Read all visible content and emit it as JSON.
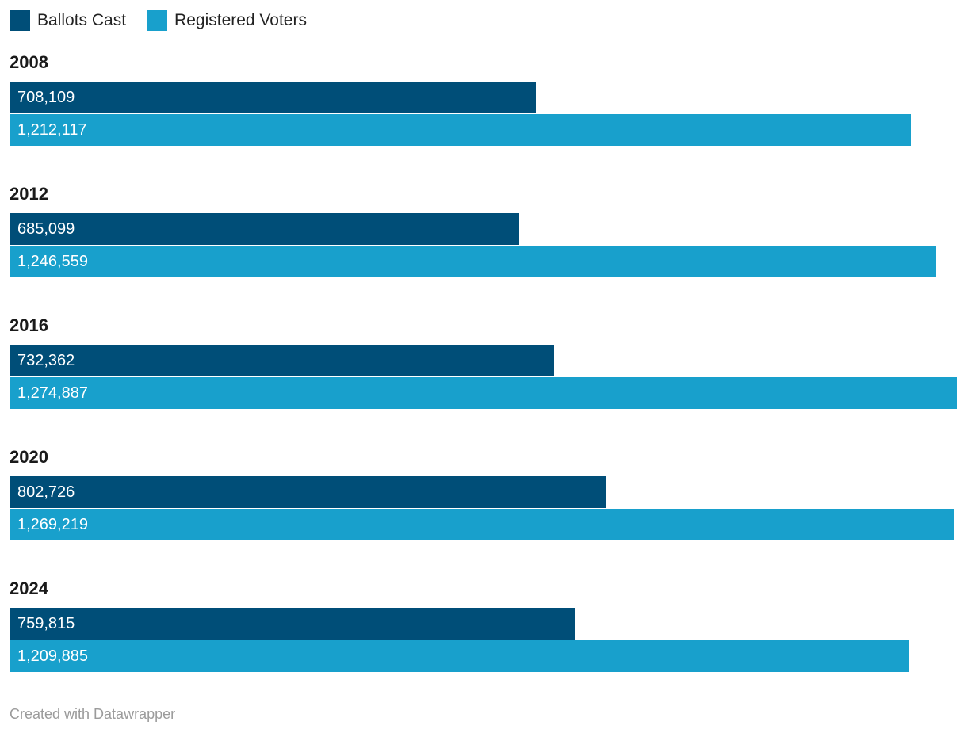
{
  "legend": {
    "items": [
      {
        "label": "Ballots Cast",
        "color": "#004e78"
      },
      {
        "label": "Registered Voters",
        "color": "#18a0cc"
      }
    ]
  },
  "chart_data": {
    "type": "bar",
    "orientation": "horizontal",
    "title": "",
    "categories": [
      "2008",
      "2012",
      "2016",
      "2020",
      "2024"
    ],
    "series": [
      {
        "name": "Ballots Cast",
        "color": "#004e78",
        "values": [
          708109,
          685099,
          732362,
          802726,
          759815
        ],
        "labels": [
          "708,109",
          "685,099",
          "732,362",
          "802,726",
          "759,815"
        ]
      },
      {
        "name": "Registered Voters",
        "color": "#18a0cc",
        "values": [
          1212117,
          1246559,
          1274887,
          1269219,
          1209885
        ],
        "labels": [
          "1,212,117",
          "1,246,559",
          "1,274,887",
          "1,269,219",
          "1,209,885"
        ]
      }
    ],
    "xmax": 1274887,
    "value_labels": "inside-bar",
    "legend_position": "top",
    "grid": false
  },
  "footer": {
    "credit": "Created with Datawrapper"
  }
}
